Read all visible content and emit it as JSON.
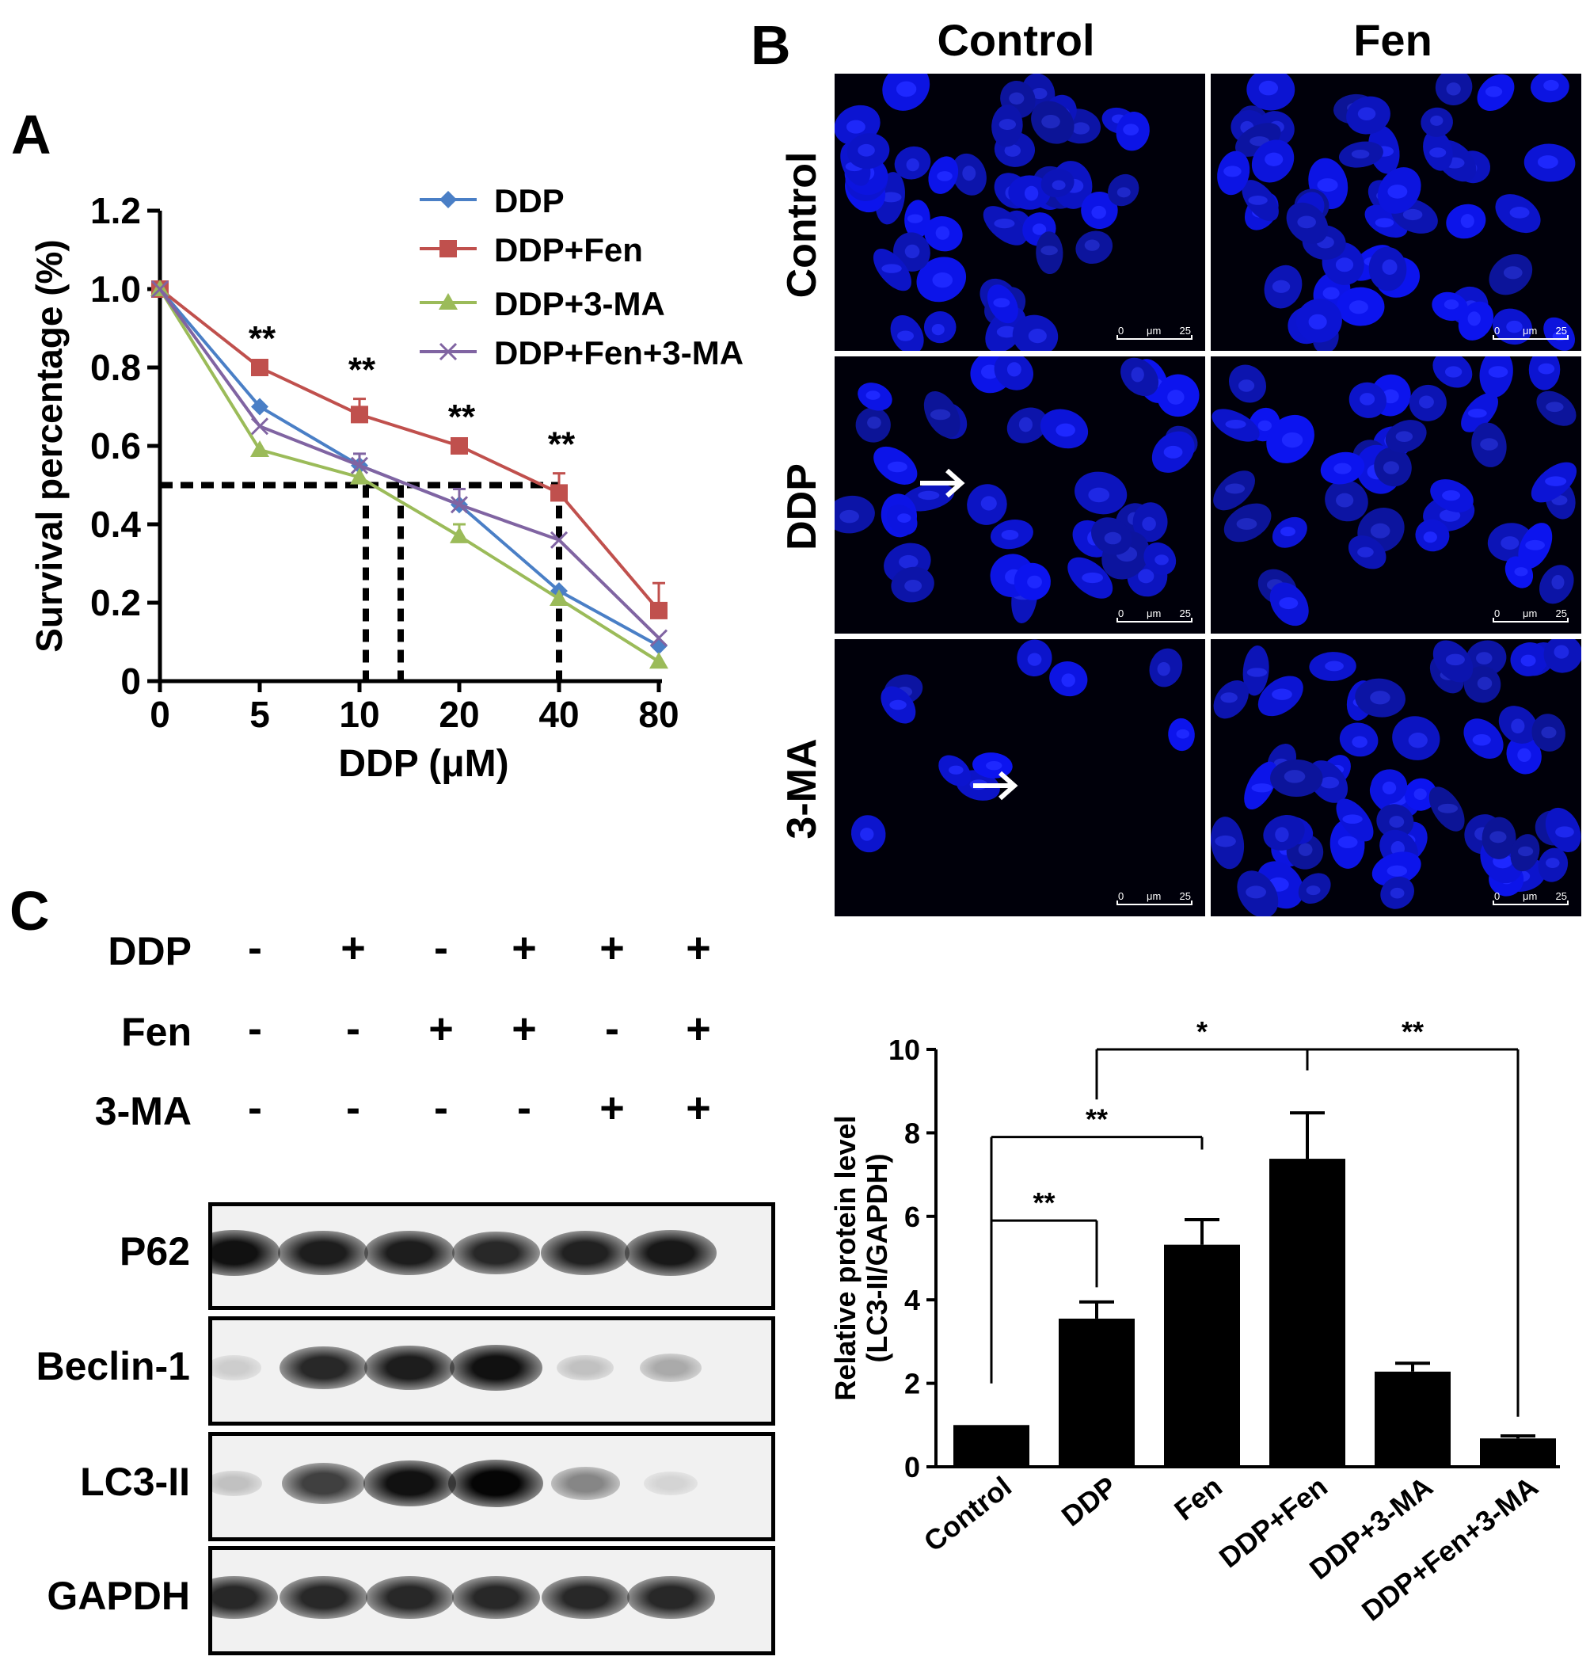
{
  "panels": {
    "a": {
      "letter": "A"
    },
    "b": {
      "letter": "B"
    },
    "c": {
      "letter": "C"
    }
  },
  "chart_data": [
    {
      "type": "line",
      "x": [
        "0",
        "5",
        "10",
        "20",
        "40",
        "80"
      ],
      "xlabel": "DDP (μM)",
      "ylabel": "Survival percentage (%)",
      "ylim": [
        0,
        1.2
      ],
      "yticks": [
        "0",
        "0.2",
        "0.4",
        "0.6",
        "0.8",
        "1.0",
        "1.2"
      ],
      "legend_position": "top-right",
      "series": [
        {
          "name": "DDP",
          "color": "#4a7fc6",
          "marker": "diamond",
          "values": [
            1.0,
            0.7,
            0.55,
            0.45,
            0.23,
            0.09
          ],
          "errors": [
            0,
            0,
            0,
            0,
            0,
            0
          ]
        },
        {
          "name": "DDP+Fen",
          "color": "#c0504d",
          "marker": "square",
          "values": [
            1.0,
            0.8,
            0.68,
            0.6,
            0.48,
            0.18
          ],
          "errors": [
            0,
            0,
            0.04,
            0,
            0.05,
            0.07
          ]
        },
        {
          "name": "DDP+3-MA",
          "color": "#9bbb59",
          "marker": "triangle",
          "values": [
            1.0,
            0.59,
            0.52,
            0.37,
            0.21,
            0.05
          ],
          "errors": [
            0,
            0,
            0,
            0.03,
            0,
            0
          ]
        },
        {
          "name": "DDP+Fen+3-MA",
          "color": "#8064a2",
          "marker": "x",
          "values": [
            1.0,
            0.65,
            0.55,
            0.45,
            0.36,
            0.11
          ],
          "errors": [
            0,
            0,
            0.03,
            0.04,
            0,
            0
          ]
        }
      ],
      "significance": [
        {
          "x": "5",
          "label": "**"
        },
        {
          "x": "10",
          "label": "**"
        },
        {
          "x": "20",
          "label": "**"
        },
        {
          "x": "40",
          "label": "**"
        }
      ],
      "reference_level": 0.5
    },
    {
      "type": "bar",
      "categories": [
        "Control",
        "DDP",
        "Fen",
        "DDP+Fen",
        "DDP+3-MA",
        "DDP+Fen+3-MA"
      ],
      "values": [
        1.0,
        3.55,
        5.32,
        7.38,
        2.28,
        0.68
      ],
      "errors": [
        0,
        0.4,
        0.6,
        1.1,
        0.2,
        0.06
      ],
      "ylabel_line1": "Relative protein level",
      "ylabel_line2": "(LC3-II/GAPDH)",
      "ylim": [
        0,
        10
      ],
      "yticks": [
        "0",
        "2",
        "4",
        "6",
        "8",
        "10"
      ],
      "comparisons": [
        {
          "from": 0,
          "to": 1,
          "label": "**"
        },
        {
          "from": 0,
          "to": 2,
          "label": "**"
        },
        {
          "from": 1,
          "to": 3,
          "label": "*"
        },
        {
          "from": 3,
          "to": 5,
          "label": "**"
        }
      ]
    }
  ],
  "microscopy": {
    "columns": [
      "Control",
      "Fen"
    ],
    "rows": [
      "Control",
      "DDP",
      "3-MA"
    ],
    "scalebar": {
      "start": "0",
      "unit": "μm",
      "end": "25"
    }
  },
  "western": {
    "treatments": [
      {
        "name": "DDP",
        "signs": [
          "-",
          "+",
          "-",
          "+",
          "+",
          "+"
        ]
      },
      {
        "name": "Fen",
        "signs": [
          "-",
          "-",
          "+",
          "+",
          "-",
          "+"
        ]
      },
      {
        "name": "3-MA",
        "signs": [
          "-",
          "-",
          "-",
          "-",
          "+",
          "+"
        ]
      }
    ],
    "blots": [
      {
        "name": "P62",
        "intensities": [
          0.95,
          0.9,
          0.9,
          0.85,
          0.88,
          0.92
        ]
      },
      {
        "name": "Beclin-1",
        "intensities": [
          0.15,
          0.85,
          0.9,
          0.95,
          0.2,
          0.3
        ]
      },
      {
        "name": "LC3-II",
        "intensities": [
          0.2,
          0.75,
          0.95,
          1.0,
          0.45,
          0.12
        ]
      },
      {
        "name": "GAPDH",
        "intensities": [
          0.85,
          0.85,
          0.85,
          0.85,
          0.85,
          0.85
        ]
      }
    ]
  }
}
